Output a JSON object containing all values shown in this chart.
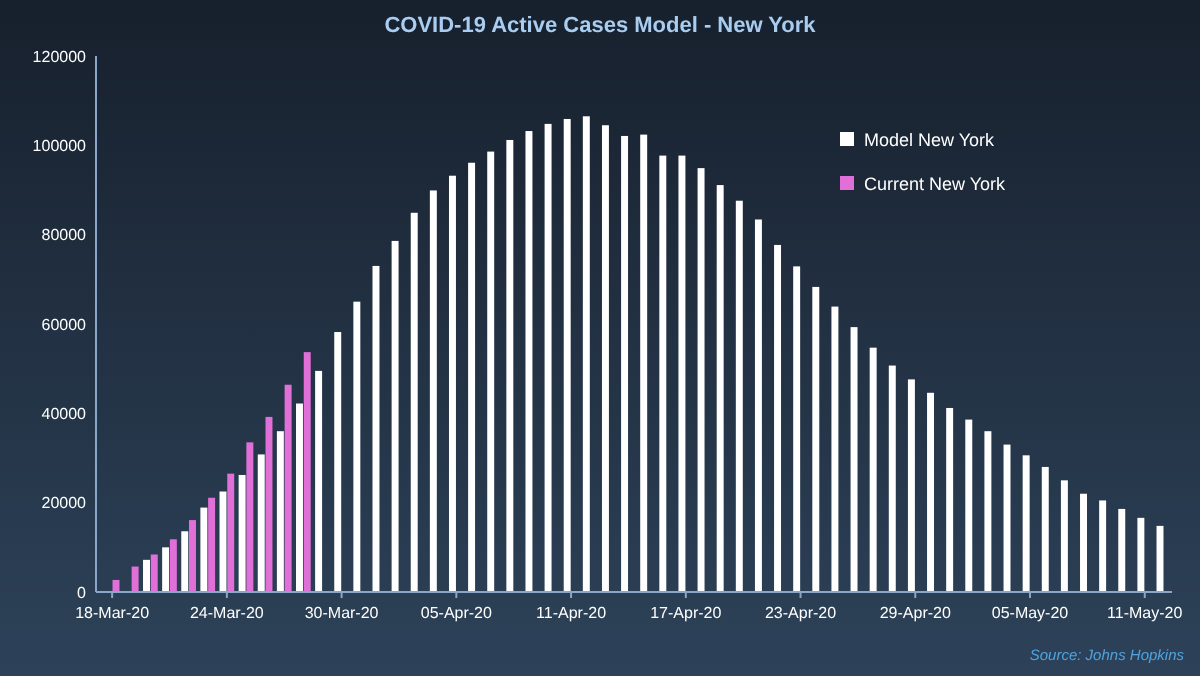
{
  "chart_data": {
    "type": "bar",
    "title": "COVID-19 Active Cases Model - New York",
    "categories": [
      "18-Mar-20",
      null,
      null,
      null,
      null,
      null,
      "24-Mar-20",
      null,
      null,
      null,
      null,
      null,
      "30-Mar-20",
      null,
      null,
      null,
      null,
      null,
      "05-Apr-20",
      null,
      null,
      null,
      null,
      null,
      "11-Apr-20",
      null,
      null,
      null,
      null,
      null,
      "17-Apr-20",
      null,
      null,
      null,
      null,
      null,
      "23-Apr-20",
      null,
      null,
      null,
      null,
      null,
      "29-Apr-20",
      null,
      null,
      null,
      null,
      null,
      "05-May-20",
      null,
      null,
      null,
      null,
      null,
      "11-May-20",
      null
    ],
    "series": [
      {
        "name": "Model New York",
        "color": "#ffffff",
        "values": [
          null,
          null,
          7200,
          10000,
          13600,
          18900,
          22500,
          26200,
          30800,
          36000,
          42200,
          49500,
          58200,
          65000,
          73000,
          78600,
          84900,
          89900,
          93200,
          96100,
          98600,
          101200,
          103200,
          104800,
          105900,
          106500,
          104500,
          102100,
          102400,
          97700,
          97700,
          94900,
          91100,
          87600,
          83400,
          77700,
          72900,
          68300,
          63900,
          59300,
          54700,
          50700,
          47600,
          44600,
          41200,
          38600,
          36000,
          33000,
          30600,
          28000,
          25000,
          22000,
          20500,
          18600,
          16600,
          14800
        ]
      },
      {
        "name": "Current New York",
        "color": "#e070d8",
        "values": [
          2700,
          5700,
          8400,
          11800,
          16100,
          21100,
          26500,
          33500,
          39200,
          46400,
          53700,
          null,
          null,
          null,
          null,
          null,
          null,
          null,
          null,
          null,
          null,
          null,
          null,
          null,
          null,
          null,
          null,
          null,
          null,
          null,
          null,
          null,
          null,
          null,
          null,
          null,
          null,
          null,
          null,
          null,
          null,
          null,
          null,
          null,
          null,
          null,
          null,
          null,
          null,
          null,
          null,
          null,
          null,
          null,
          null,
          null
        ]
      }
    ],
    "ylim": [
      0,
      120000
    ],
    "yticks": [
      0,
      20000,
      40000,
      60000,
      80000,
      100000,
      120000
    ],
    "legend": "top right",
    "annotations": [
      "Source: Johns Hopkins"
    ]
  }
}
